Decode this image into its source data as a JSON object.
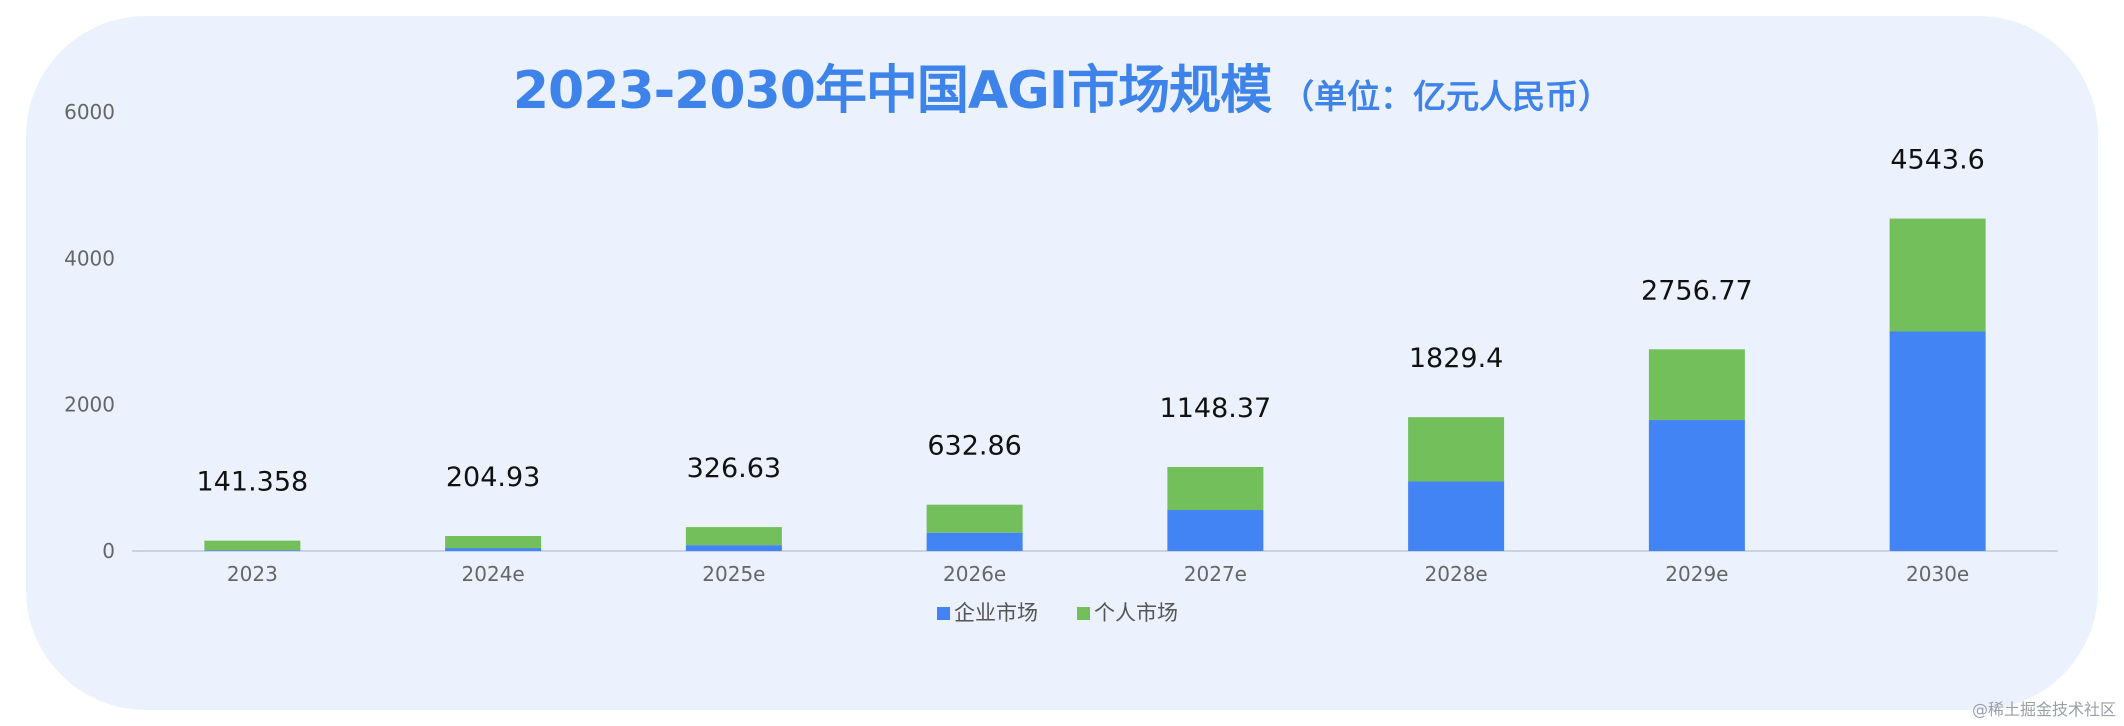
{
  "chart_data": {
    "type": "bar",
    "stacked": true,
    "title": "2023-2030年中国AGI市场规模",
    "subtitle": "（单位：亿元人民币）",
    "categories": [
      "2023",
      "2024e",
      "2025e",
      "2026e",
      "2027e",
      "2028e",
      "2029e",
      "2030e"
    ],
    "series": [
      {
        "name": "企业市场",
        "color": "#4284f3",
        "values": [
          10,
          40,
          80,
          250,
          560,
          950,
          1790,
          3000
        ]
      },
      {
        "name": "个人市场",
        "color": "#72bf5b",
        "values": [
          131.358,
          164.93,
          246.63,
          382.86,
          588.37,
          879.4,
          966.77,
          1543.6
        ]
      }
    ],
    "totals": [
      141.358,
      204.93,
      326.63,
      632.86,
      1148.37,
      1829.4,
      2756.77,
      4543.6
    ],
    "total_labels": [
      "141.358",
      "204.93",
      "326.63",
      "632.86",
      "1148.37",
      "1829.4",
      "2756.77",
      "4543.6"
    ],
    "yticks": [
      0,
      2000,
      4000,
      6000
    ],
    "ylim": [
      0,
      6000
    ],
    "xlabel": "",
    "ylabel": "",
    "grid": false,
    "legend": "bottom-center"
  },
  "footer": {
    "credit": "@稀土掘金技术社区"
  }
}
